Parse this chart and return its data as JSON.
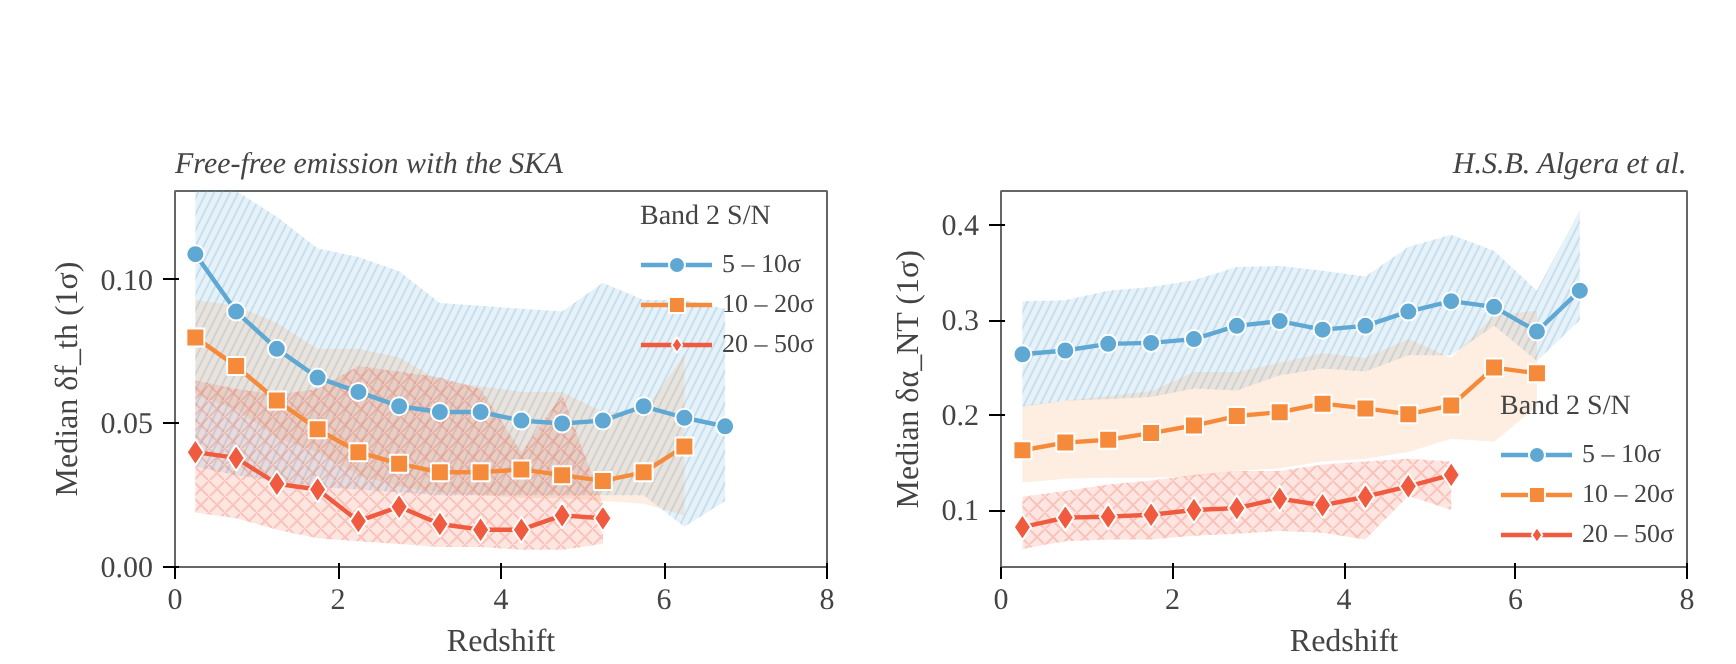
{
  "chart_data": [
    {
      "type": "line",
      "title": "Free-free emission with the SKA",
      "xlabel": "Redshift",
      "ylabel": "Median δf_th (1σ)",
      "legend_title": "Band 2 S/N",
      "legend": "top right",
      "grid": false,
      "line_style": "solid",
      "xlim": [
        0,
        8
      ],
      "ylim": [
        0,
        0.131
      ],
      "xticks": [
        0,
        2,
        4,
        6,
        8
      ],
      "yticks": [
        {
          "value": 0,
          "label": "0.00"
        },
        {
          "value": 0.05,
          "label": "0.05"
        },
        {
          "value": 0.1,
          "label": "0.10"
        }
      ],
      "series": [
        {
          "name": "5 – 10σ",
          "color": "#5fa8d3",
          "marker": "circle",
          "x": [
            0.25,
            0.75,
            1.25,
            1.75,
            2.25,
            2.75,
            3.25,
            3.75,
            4.25,
            4.75,
            5.25,
            5.75,
            6.25,
            6.75
          ],
          "values": [
            0.109,
            0.089,
            0.076,
            0.066,
            0.061,
            0.056,
            0.054,
            0.054,
            0.051,
            0.05,
            0.051,
            0.056,
            0.052,
            0.049
          ],
          "upper": [
            0.131,
            0.131,
            0.122,
            0.111,
            0.108,
            0.103,
            0.092,
            0.091,
            0.09,
            0.089,
            0.099,
            0.093,
            0.093,
            0.09
          ],
          "lower": [
            0.035,
            0.032,
            0.03,
            0.028,
            0.027,
            0.026,
            0.025,
            0.025,
            0.025,
            0.025,
            0.025,
            0.025,
            0.014,
            0.023
          ]
        },
        {
          "name": "10 – 20σ",
          "color": "#f58b3a",
          "marker": "square",
          "x": [
            0.25,
            0.75,
            1.25,
            1.75,
            2.25,
            2.75,
            3.25,
            3.75,
            4.25,
            4.75,
            5.25,
            5.75,
            6.25
          ],
          "values": [
            0.08,
            0.07,
            0.058,
            0.048,
            0.04,
            0.036,
            0.033,
            0.033,
            0.034,
            0.032,
            0.03,
            0.033,
            0.042
          ],
          "upper": [
            0.093,
            0.091,
            0.085,
            0.076,
            0.076,
            0.073,
            0.065,
            0.063,
            0.061,
            0.061,
            0.054,
            0.054,
            0.074
          ],
          "lower": [
            0.06,
            0.055,
            0.045,
            0.04,
            0.032,
            0.028,
            0.026,
            0.025,
            0.024,
            0.024,
            0.023,
            0.022,
            0.018
          ]
        },
        {
          "name": "20 – 50σ",
          "color": "#f05a3e",
          "marker": "diamond",
          "x": [
            0.25,
            0.75,
            1.25,
            1.75,
            2.25,
            2.75,
            3.25,
            3.75,
            4.25,
            4.75,
            5.25
          ],
          "values": [
            0.04,
            0.038,
            0.029,
            0.027,
            0.016,
            0.021,
            0.015,
            0.013,
            0.013,
            0.018,
            0.017
          ],
          "upper": [
            0.065,
            0.062,
            0.06,
            0.062,
            0.07,
            0.068,
            0.066,
            0.062,
            0.04,
            0.06,
            0.022
          ],
          "lower": [
            0.019,
            0.017,
            0.013,
            0.01,
            0.009,
            0.008,
            0.007,
            0.007,
            0.006,
            0.006,
            0.008
          ]
        }
      ]
    },
    {
      "type": "line",
      "title": "H.S.B. Algera et al.",
      "xlabel": "Redshift",
      "ylabel": "Median δα_NT (1σ)",
      "legend_title": "Band 2 S/N",
      "legend": "bottom right",
      "grid": false,
      "line_style": "solid",
      "xlim": [
        0,
        8
      ],
      "ylim": [
        0.04,
        0.436
      ],
      "xticks": [
        0,
        2,
        4,
        6,
        8
      ],
      "yticks": [
        0.1,
        0.2,
        0.3,
        0.4
      ],
      "series": [
        {
          "name": "5 – 10σ",
          "color": "#5fa8d3",
          "marker": "circle",
          "x": [
            0.25,
            0.75,
            1.25,
            1.75,
            2.25,
            2.75,
            3.25,
            3.75,
            4.25,
            4.75,
            5.25,
            5.75,
            6.25,
            6.75
          ],
          "values": [
            0.264,
            0.268,
            0.275,
            0.276,
            0.28,
            0.294,
            0.299,
            0.29,
            0.294,
            0.309,
            0.32,
            0.314,
            0.288,
            0.331
          ],
          "upper": [
            0.32,
            0.321,
            0.331,
            0.335,
            0.342,
            0.356,
            0.357,
            0.352,
            0.346,
            0.377,
            0.39,
            0.373,
            0.331,
            0.416
          ],
          "lower": [
            0.209,
            0.215,
            0.217,
            0.219,
            0.228,
            0.226,
            0.242,
            0.249,
            0.246,
            0.263,
            0.263,
            0.294,
            0.257,
            0.3
          ]
        },
        {
          "name": "10 – 20σ",
          "color": "#f58b3a",
          "marker": "square",
          "x": [
            0.25,
            0.75,
            1.25,
            1.75,
            2.25,
            2.75,
            3.25,
            3.75,
            4.25,
            4.75,
            5.25,
            5.75,
            6.25
          ],
          "values": [
            0.163,
            0.171,
            0.174,
            0.181,
            0.189,
            0.199,
            0.203,
            0.212,
            0.207,
            0.201,
            0.21,
            0.25,
            0.244
          ],
          "upper": [
            0.21,
            0.215,
            0.22,
            0.225,
            0.245,
            0.245,
            0.255,
            0.265,
            0.26,
            0.28,
            0.26,
            0.305,
            0.31
          ],
          "lower": [
            0.129,
            0.133,
            0.134,
            0.134,
            0.135,
            0.141,
            0.144,
            0.151,
            0.154,
            0.161,
            0.175,
            0.172,
            0.209
          ]
        },
        {
          "name": "20 – 50σ",
          "color": "#f05a3e",
          "marker": "diamond",
          "x": [
            0.25,
            0.75,
            1.25,
            1.75,
            2.25,
            2.75,
            3.25,
            3.75,
            4.25,
            4.75,
            5.25
          ],
          "values": [
            0.082,
            0.092,
            0.093,
            0.095,
            0.1,
            0.102,
            0.112,
            0.105,
            0.114,
            0.125,
            0.137
          ],
          "upper": [
            0.114,
            0.12,
            0.127,
            0.131,
            0.137,
            0.141,
            0.141,
            0.148,
            0.151,
            0.154,
            0.151
          ],
          "lower": [
            0.059,
            0.067,
            0.069,
            0.069,
            0.073,
            0.075,
            0.078,
            0.076,
            0.069,
            0.115,
            0.1
          ]
        }
      ]
    }
  ]
}
